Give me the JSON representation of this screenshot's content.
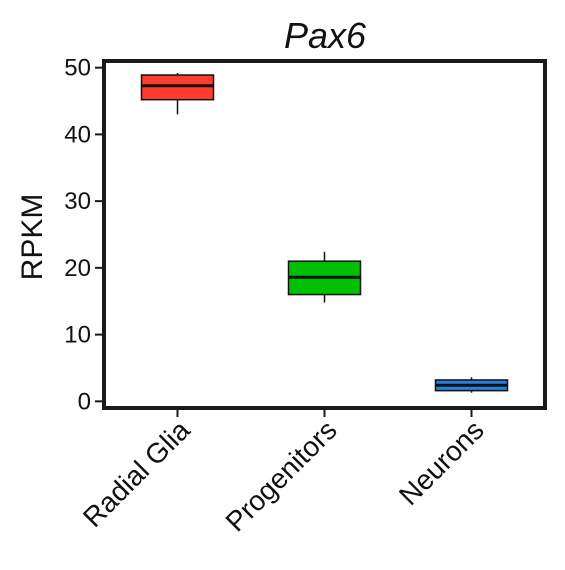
{
  "chart_data": {
    "type": "box",
    "title": "Pax6",
    "xlabel": "",
    "ylabel": "RPKM",
    "ylim": [
      -1,
      51
    ],
    "yticks": [
      0,
      10,
      20,
      30,
      40,
      50
    ],
    "ytick_labels": [
      "0",
      "10",
      "20",
      "30",
      "40",
      "50"
    ],
    "grid": false,
    "categories": [
      "Radial Glia",
      "Progenitors",
      "Neurons"
    ],
    "boxes": [
      {
        "category": "Radial Glia",
        "whisker_low": 43.0,
        "q1": 45.2,
        "median": 47.3,
        "q3": 48.9,
        "whisker_high": 49.2,
        "color": "#ff3b30"
      },
      {
        "category": "Progenitors",
        "whisker_low": 14.8,
        "q1": 16.0,
        "median": 18.6,
        "q3": 21.0,
        "whisker_high": 22.4,
        "color": "#00c000"
      },
      {
        "category": "Neurons",
        "whisker_low": 1.3,
        "q1": 1.6,
        "median": 2.4,
        "q3": 3.2,
        "whisker_high": 3.6,
        "color": "#2a7de1"
      }
    ]
  }
}
